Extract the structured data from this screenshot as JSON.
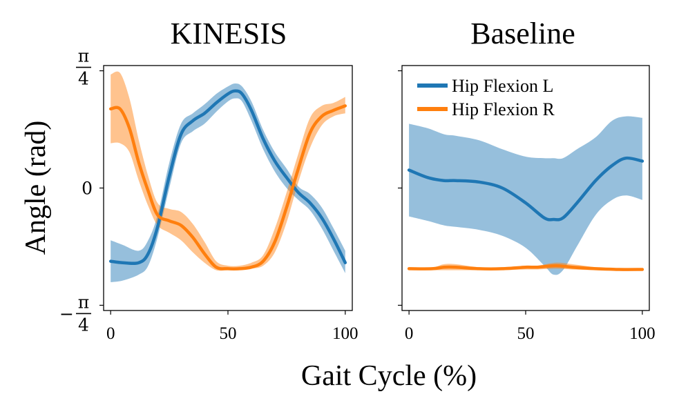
{
  "chart_data": {
    "type": "line",
    "xlabel": "Gait Cycle (%)",
    "ylabel": "Angle (rad)",
    "xlim": [
      -3,
      103
    ],
    "ylim": [
      -0.82,
      0.82
    ],
    "xticks": [
      0,
      50,
      100
    ],
    "xtick_labels": [
      "0",
      "50",
      "100"
    ],
    "yticks": [
      {
        "value": 0.785,
        "top": "π",
        "bottom": "4",
        "prefix": ""
      },
      {
        "value": 0.0,
        "label": "0"
      },
      {
        "value": -0.785,
        "top": "π",
        "bottom": "4",
        "prefix": "−"
      }
    ],
    "colors": {
      "left": "#1f77b4",
      "right": "#ff7f0e"
    },
    "legend": {
      "position": "top-left",
      "panel": "Baseline",
      "entries": [
        "Hip Flexion L",
        "Hip Flexion R"
      ]
    },
    "panels": [
      {
        "title": "KINESIS",
        "series": [
          {
            "name": "Hip Flexion L",
            "x": [
              0,
              5,
              12,
              16,
              20,
              25,
              30,
              35,
              40,
              45,
              50,
              53,
              56,
              60,
              65,
              70,
              75,
              80,
              85,
              90,
              95,
              100
            ],
            "y": [
              -0.49,
              -0.5,
              -0.5,
              -0.44,
              -0.26,
              0.08,
              0.36,
              0.45,
              0.5,
              0.57,
              0.63,
              0.65,
              0.63,
              0.52,
              0.33,
              0.18,
              0.07,
              -0.03,
              -0.1,
              -0.2,
              -0.34,
              -0.5
            ],
            "lower": [
              -0.63,
              -0.62,
              -0.58,
              -0.52,
              -0.33,
              0.0,
              0.3,
              0.38,
              0.43,
              0.51,
              0.58,
              0.6,
              0.58,
              0.45,
              0.26,
              0.11,
              0.0,
              -0.08,
              -0.15,
              -0.27,
              -0.42,
              -0.57
            ],
            "upper": [
              -0.35,
              -0.38,
              -0.42,
              -0.35,
              -0.18,
              0.17,
              0.43,
              0.5,
              0.56,
              0.63,
              0.68,
              0.7,
              0.68,
              0.58,
              0.39,
              0.24,
              0.13,
              0.01,
              -0.04,
              -0.13,
              -0.27,
              -0.42
            ]
          },
          {
            "name": "Hip Flexion R",
            "x": [
              0,
              4,
              8,
              12,
              16,
              20,
              25,
              30,
              35,
              40,
              45,
              50,
              55,
              60,
              65,
              70,
              75,
              80,
              85,
              90,
              95,
              100
            ],
            "y": [
              0.53,
              0.53,
              0.4,
              0.17,
              -0.02,
              -0.18,
              -0.22,
              -0.25,
              -0.33,
              -0.44,
              -0.53,
              -0.54,
              -0.54,
              -0.53,
              -0.49,
              -0.36,
              -0.13,
              0.13,
              0.37,
              0.48,
              0.52,
              0.55
            ],
            "lower": [
              0.3,
              0.3,
              0.24,
              0.05,
              -0.12,
              -0.25,
              -0.3,
              -0.35,
              -0.43,
              -0.5,
              -0.55,
              -0.55,
              -0.55,
              -0.54,
              -0.52,
              -0.43,
              -0.23,
              0.04,
              0.27,
              0.42,
              0.48,
              0.5
            ],
            "upper": [
              0.76,
              0.77,
              0.6,
              0.32,
              0.08,
              -0.1,
              -0.14,
              -0.16,
              -0.24,
              -0.36,
              -0.49,
              -0.52,
              -0.52,
              -0.5,
              -0.45,
              -0.27,
              -0.03,
              0.23,
              0.47,
              0.55,
              0.57,
              0.61
            ]
          }
        ]
      },
      {
        "title": "Baseline",
        "series": [
          {
            "name": "Hip Flexion L",
            "x": [
              0,
              8,
              15,
              20,
              30,
              40,
              50,
              58,
              62,
              66,
              72,
              80,
              87,
              93,
              100
            ],
            "y": [
              0.12,
              0.07,
              0.05,
              0.05,
              0.04,
              0.0,
              -0.1,
              -0.2,
              -0.21,
              -0.2,
              -0.1,
              0.05,
              0.15,
              0.2,
              0.18
            ],
            "lower": [
              -0.19,
              -0.22,
              -0.25,
              -0.26,
              -0.28,
              -0.32,
              -0.4,
              -0.52,
              -0.58,
              -0.55,
              -0.39,
              -0.18,
              -0.08,
              -0.05,
              -0.08
            ],
            "upper": [
              0.43,
              0.4,
              0.36,
              0.35,
              0.32,
              0.26,
              0.21,
              0.2,
              0.2,
              0.2,
              0.26,
              0.34,
              0.45,
              0.48,
              0.47
            ]
          },
          {
            "name": "Hip Flexion R",
            "x": [
              0,
              10,
              15,
              20,
              30,
              40,
              50,
              55,
              63,
              70,
              80,
              90,
              100
            ],
            "y": [
              -0.54,
              -0.54,
              -0.53,
              -0.53,
              -0.54,
              -0.54,
              -0.53,
              -0.53,
              -0.52,
              -0.53,
              -0.54,
              -0.545,
              -0.545
            ],
            "lower": [
              -0.55,
              -0.55,
              -0.55,
              -0.55,
              -0.55,
              -0.55,
              -0.545,
              -0.545,
              -0.54,
              -0.545,
              -0.55,
              -0.55,
              -0.55
            ],
            "upper": [
              -0.53,
              -0.53,
              -0.51,
              -0.51,
              -0.53,
              -0.53,
              -0.52,
              -0.52,
              -0.5,
              -0.51,
              -0.53,
              -0.54,
              -0.54
            ]
          }
        ]
      }
    ]
  }
}
